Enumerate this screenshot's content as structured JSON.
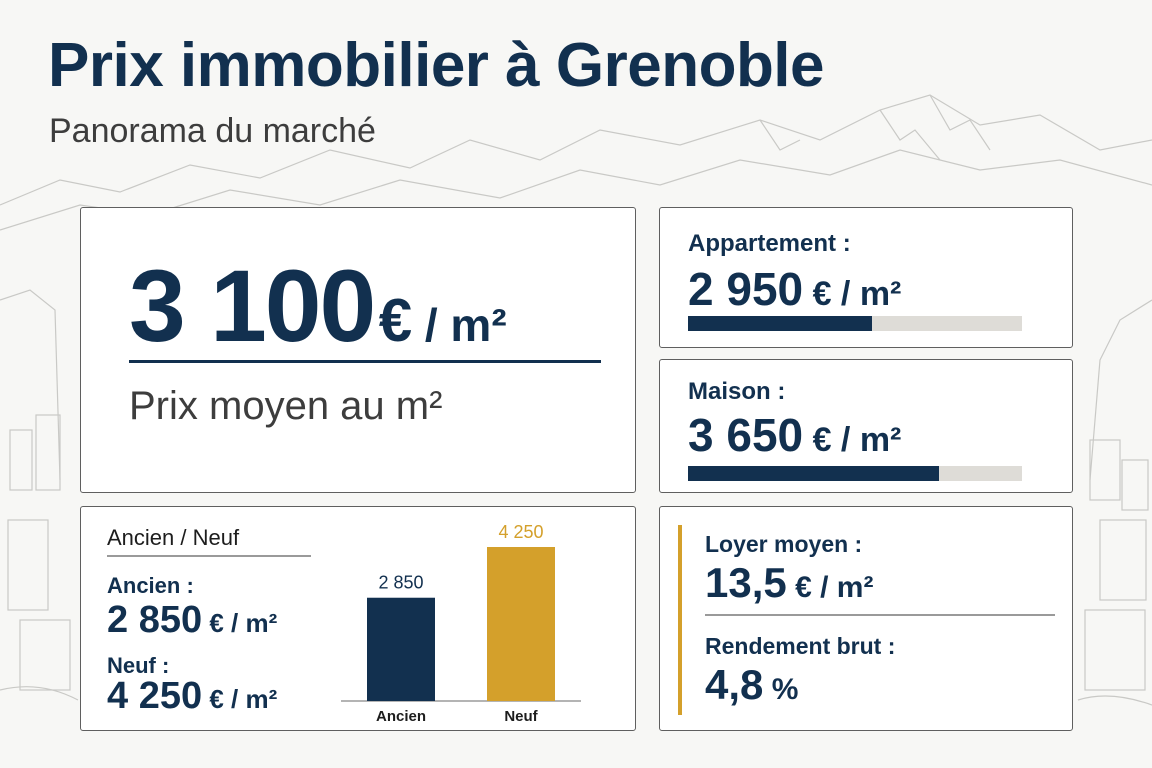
{
  "header": {
    "title": "Prix immobilier à Grenoble",
    "subtitle": "Panorama du marché"
  },
  "average": {
    "value": "3 100",
    "unit_euro": "€",
    "unit_m2": " / m²",
    "caption": "Prix moyen au m²"
  },
  "apartment": {
    "label": "Appartement :",
    "value": "2 950",
    "unit": " € / m²",
    "bar_fraction": 0.55
  },
  "house": {
    "label": "Maison :",
    "value": "3 650",
    "unit": " € / m²",
    "bar_fraction": 0.75
  },
  "old_new": {
    "heading": "Ancien / Neuf",
    "old_label": "Ancien :",
    "old_value": "2 850",
    "old_unit": " € / m²",
    "new_label": "Neuf :",
    "new_value": "4 250",
    "new_unit": " € / m²"
  },
  "rent": {
    "label": "Loyer moyen :",
    "value": "13,5",
    "unit": " € / m²",
    "yield_label": "Rendement brut :",
    "yield_value": "4,8",
    "yield_unit": " %"
  },
  "colors": {
    "navy": "#12304f",
    "gold": "#d4a02b",
    "track": "#dedcd7"
  },
  "chart_data": {
    "type": "bar",
    "categories": [
      "Ancien",
      "Neuf"
    ],
    "values": [
      2850,
      4250
    ],
    "value_labels": [
      "2 850",
      "4 250"
    ],
    "colors": [
      "#12304f",
      "#d4a02b"
    ],
    "title": "",
    "xlabel": "",
    "ylabel": "",
    "ylim": [
      0,
      4250
    ],
    "grid": false
  }
}
